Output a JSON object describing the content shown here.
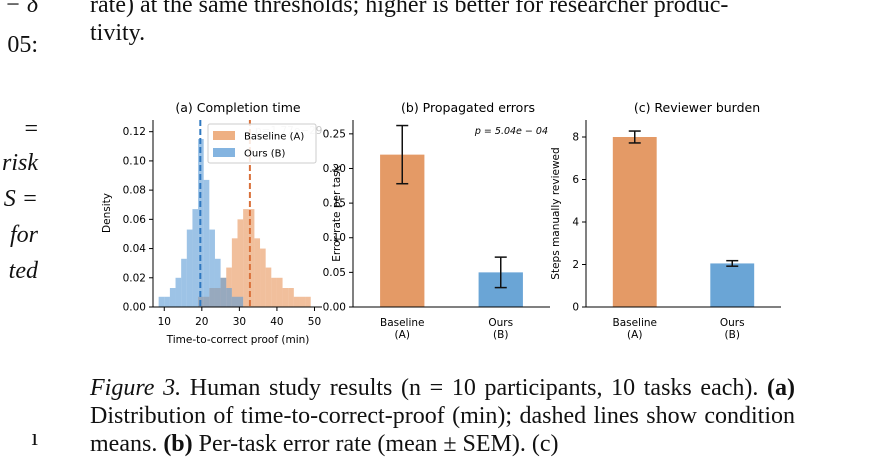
{
  "top_text": {
    "line1": "rate) at the same thresholds; higher is better for researcher produc-",
    "line2": "tivity."
  },
  "left_fragments": [
    "− δ",
    "05:",
    "=",
    "risk",
    "S =",
    "for",
    "ted",
    "ı"
  ],
  "caption": {
    "label": "Figure 3.",
    "text": " Human study results (n = 10 participants, 10 tasks each). ",
    "bold_a": "(a)",
    "text_a": " Distribution of time-to-correct-proof (min); dashed lines show condition means. ",
    "bold_b": "(b)",
    "text_b": " Per-task error rate (mean ± SEM). (c)"
  },
  "chart_data": [
    {
      "type": "histogram",
      "title": "(a) Completion time",
      "xlabel": "Time-to-correct proof (min)",
      "ylabel": "Density",
      "xlim": [
        7,
        52
      ],
      "ylim": [
        0,
        0.128
      ],
      "xticks": [
        10,
        20,
        30,
        40,
        50
      ],
      "yticks": [
        0.0,
        0.02,
        0.04,
        0.06,
        0.08,
        0.1,
        0.12
      ],
      "bin_width": 1.5,
      "legend": "top-right",
      "annotation": "p=1.77e−29",
      "series": [
        {
          "name": "Baseline (A)",
          "color": "#e8955a",
          "mean": 32.8,
          "bins": [
            [
              19,
              0.007
            ],
            [
              20.5,
              0.007
            ],
            [
              22,
              0.013
            ],
            [
              23.5,
              0.013
            ],
            [
              25,
              0.02
            ],
            [
              26.5,
              0.027
            ],
            [
              28,
              0.047
            ],
            [
              29.5,
              0.06
            ],
            [
              31,
              0.067
            ],
            [
              32.5,
              0.067
            ],
            [
              34,
              0.047
            ],
            [
              35.5,
              0.04
            ],
            [
              37,
              0.027
            ],
            [
              38.5,
              0.02
            ],
            [
              40,
              0.02
            ],
            [
              41.5,
              0.013
            ],
            [
              43,
              0.013
            ],
            [
              44.5,
              0.007
            ],
            [
              46,
              0.007
            ],
            [
              47.5,
              0.007
            ]
          ]
        },
        {
          "name": "Ours (B)",
          "color": "#5b9bd5",
          "mean": 19.6,
          "bins": [
            [
              8.5,
              0.007
            ],
            [
              10,
              0.007
            ],
            [
              11.5,
              0.013
            ],
            [
              13,
              0.02
            ],
            [
              14.5,
              0.033
            ],
            [
              16,
              0.053
            ],
            [
              17.5,
              0.067
            ],
            [
              19,
              0.115
            ],
            [
              20.5,
              0.087
            ],
            [
              22,
              0.053
            ],
            [
              23.5,
              0.033
            ],
            [
              25,
              0.02
            ],
            [
              26.5,
              0.013
            ],
            [
              28,
              0.007
            ],
            [
              29.5,
              0.007
            ]
          ]
        }
      ]
    },
    {
      "type": "bar",
      "title": "(b) Propagated errors",
      "ylabel": "Error rate per task",
      "categories": [
        "Baseline\n(A)",
        "Ours\n(B)"
      ],
      "values": [
        0.22,
        0.05
      ],
      "errors": [
        0.042,
        0.022
      ],
      "colors": [
        "#e49a66",
        "#6aa5d6"
      ],
      "ylim": [
        0,
        0.27
      ],
      "yticks": [
        0.0,
        0.05,
        0.1,
        0.15,
        0.2,
        0.25
      ],
      "annotation": "p = 5.04e − 04"
    },
    {
      "type": "bar",
      "title": "(c) Reviewer burden",
      "ylabel": "Steps manually reviewed",
      "categories": [
        "Baseline\n(A)",
        "Ours\n(B)"
      ],
      "values": [
        8.0,
        2.05
      ],
      "errors": [
        0.28,
        0.13
      ],
      "colors": [
        "#e49a66",
        "#6aa5d6"
      ],
      "ylim": [
        0,
        8.8
      ],
      "yticks": [
        0,
        2,
        4,
        6,
        8
      ]
    }
  ]
}
